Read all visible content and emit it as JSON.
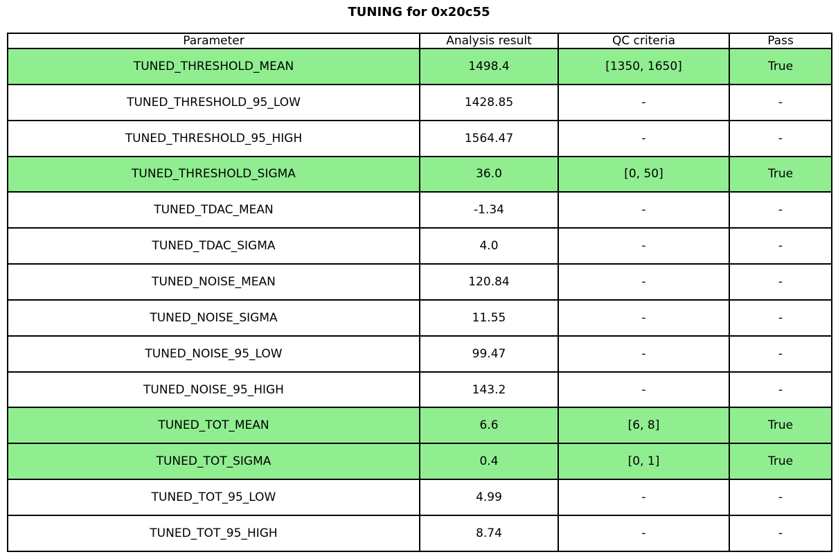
{
  "title": "TUNING for 0x20c55",
  "colors": {
    "highlight_green": "#90EE90",
    "border": "#000000",
    "background": "#FFFFFF",
    "text": "#000000"
  },
  "table": {
    "headers": [
      "Parameter",
      "Analysis result",
      "QC criteria",
      "Pass"
    ],
    "rows": [
      {
        "parameter": "TUNED_THRESHOLD_MEAN",
        "result": "1498.4",
        "qc": "[1350, 1650]",
        "pass": "True",
        "highlight": true
      },
      {
        "parameter": "TUNED_THRESHOLD_95_LOW",
        "result": "1428.85",
        "qc": "-",
        "pass": "-",
        "highlight": false
      },
      {
        "parameter": "TUNED_THRESHOLD_95_HIGH",
        "result": "1564.47",
        "qc": "-",
        "pass": "-",
        "highlight": false
      },
      {
        "parameter": "TUNED_THRESHOLD_SIGMA",
        "result": "36.0",
        "qc": "[0, 50]",
        "pass": "True",
        "highlight": true
      },
      {
        "parameter": "TUNED_TDAC_MEAN",
        "result": "-1.34",
        "qc": "-",
        "pass": "-",
        "highlight": false
      },
      {
        "parameter": "TUNED_TDAC_SIGMA",
        "result": "4.0",
        "qc": "-",
        "pass": "-",
        "highlight": false
      },
      {
        "parameter": "TUNED_NOISE_MEAN",
        "result": "120.84",
        "qc": "-",
        "pass": "-",
        "highlight": false
      },
      {
        "parameter": "TUNED_NOISE_SIGMA",
        "result": "11.55",
        "qc": "-",
        "pass": "-",
        "highlight": false
      },
      {
        "parameter": "TUNED_NOISE_95_LOW",
        "result": "99.47",
        "qc": "-",
        "pass": "-",
        "highlight": false
      },
      {
        "parameter": "TUNED_NOISE_95_HIGH",
        "result": "143.2",
        "qc": "-",
        "pass": "-",
        "highlight": false
      },
      {
        "parameter": "TUNED_TOT_MEAN",
        "result": "6.6",
        "qc": "[6, 8]",
        "pass": "True",
        "highlight": true
      },
      {
        "parameter": "TUNED_TOT_SIGMA",
        "result": "0.4",
        "qc": "[0, 1]",
        "pass": "True",
        "highlight": true
      },
      {
        "parameter": "TUNED_TOT_95_LOW",
        "result": "4.99",
        "qc": "-",
        "pass": "-",
        "highlight": false
      },
      {
        "parameter": "TUNED_TOT_95_HIGH",
        "result": "8.74",
        "qc": "-",
        "pass": "-",
        "highlight": false
      }
    ]
  },
  "chart_data": {
    "type": "table",
    "title": "TUNING for 0x20c55",
    "columns": [
      "Parameter",
      "Analysis result",
      "QC criteria",
      "Pass"
    ],
    "rows": [
      [
        "TUNED_THRESHOLD_MEAN",
        "1498.4",
        "[1350, 1650]",
        "True"
      ],
      [
        "TUNED_THRESHOLD_95_LOW",
        "1428.85",
        "-",
        "-"
      ],
      [
        "TUNED_THRESHOLD_95_HIGH",
        "1564.47",
        "-",
        "-"
      ],
      [
        "TUNED_THRESHOLD_SIGMA",
        "36.0",
        "[0, 50]",
        "True"
      ],
      [
        "TUNED_TDAC_MEAN",
        "-1.34",
        "-",
        "-"
      ],
      [
        "TUNED_TDAC_SIGMA",
        "4.0",
        "-",
        "-"
      ],
      [
        "TUNED_NOISE_MEAN",
        "120.84",
        "-",
        "-"
      ],
      [
        "TUNED_NOISE_SIGMA",
        "11.55",
        "-",
        "-"
      ],
      [
        "TUNED_NOISE_95_LOW",
        "99.47",
        "-",
        "-"
      ],
      [
        "TUNED_NOISE_95_HIGH",
        "143.2",
        "-",
        "-"
      ],
      [
        "TUNED_TOT_MEAN",
        "6.6",
        "[6, 8]",
        "True"
      ],
      [
        "TUNED_TOT_SIGMA",
        "0.4",
        "[0, 1]",
        "True"
      ],
      [
        "TUNED_TOT_95_LOW",
        "4.99",
        "-",
        "-"
      ],
      [
        "TUNED_TOT_95_HIGH",
        "8.74",
        "-",
        "-"
      ]
    ],
    "highlighted_rows": [
      "TUNED_THRESHOLD_MEAN",
      "TUNED_THRESHOLD_SIGMA",
      "TUNED_TOT_MEAN",
      "TUNED_TOT_SIGMA"
    ],
    "highlight_color": "#90EE90",
    "legend_position": "none",
    "grid": true
  }
}
